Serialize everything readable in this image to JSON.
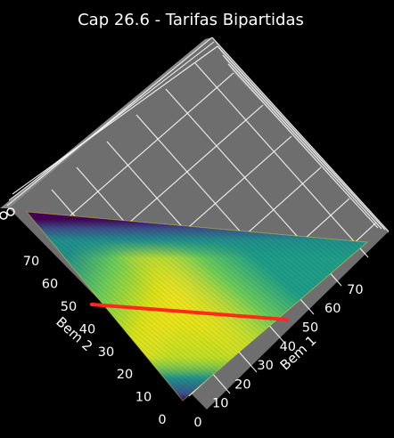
{
  "chart_data": {
    "type": "surface3d",
    "title": "Cap 26.6 - Tarifas Bipartidas",
    "xlabel": "Bem 1",
    "ylabel": "Bem 2",
    "x_ticks": [
      "0",
      "10",
      "20",
      "30",
      "40",
      "50",
      "60",
      "70"
    ],
    "y_ticks": [
      "0",
      "10",
      "20",
      "30",
      "40",
      "50",
      "60",
      "70"
    ],
    "xlim": [
      0,
      80
    ],
    "ylim": [
      0,
      80
    ],
    "grid": true,
    "colormap": "viridis",
    "surface": "utility over the budget triangle x + y <= 80",
    "budget_line": {
      "color": "#ff2a1a",
      "from": [
        0,
        50
      ],
      "to": [
        50,
        45
      ]
    }
  }
}
